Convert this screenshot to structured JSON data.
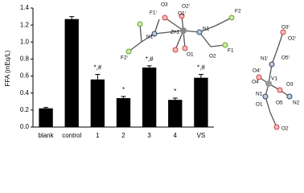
{
  "chart_data": {
    "type": "bar",
    "y_label": "FFA (mEq/L)",
    "categories": [
      "blank",
      "control",
      "1",
      "2",
      "3",
      "4",
      "VS"
    ],
    "values": [
      0.22,
      1.27,
      0.56,
      0.34,
      0.7,
      0.32,
      0.58
    ],
    "errors": [
      0.01,
      0.03,
      0.06,
      0.02,
      0.02,
      0.02,
      0.04
    ],
    "annotations": [
      null,
      null,
      "*,#",
      "*",
      "*,#",
      "*",
      "*,#"
    ],
    "color": "#000000",
    "ylim": [
      0,
      1.4
    ],
    "yticks": [
      {
        "value": 0,
        "label": "0.0"
      },
      {
        "value": 0.2,
        "label": "0.2"
      },
      {
        "value": 0.4,
        "label": "0.4"
      },
      {
        "value": 0.6,
        "label": "0.6"
      },
      {
        "value": 0.8,
        "label": "0.8"
      },
      {
        "value": 1.0,
        "label": "1.0"
      },
      {
        "value": 1.2,
        "label": "1.2"
      },
      {
        "value": 1.4,
        "label": "1.4"
      }
    ]
  },
  "structures": {
    "zinc": [
      "F1ⁱ",
      "O3",
      "O2ⁱ",
      "O1ⁱ",
      "F2",
      "Zn1",
      "N1ⁱ",
      "N1",
      "F2ⁱ",
      "O1",
      "O2",
      "F1"
    ],
    "vanadium": [
      "O3ⁱ",
      "O2ⁱ",
      "N1ⁱ",
      "O5ⁱ",
      "O4ⁱ",
      "V1",
      "O4",
      "O3",
      "N2",
      "N1",
      "O1",
      "O5",
      "O2"
    ]
  }
}
